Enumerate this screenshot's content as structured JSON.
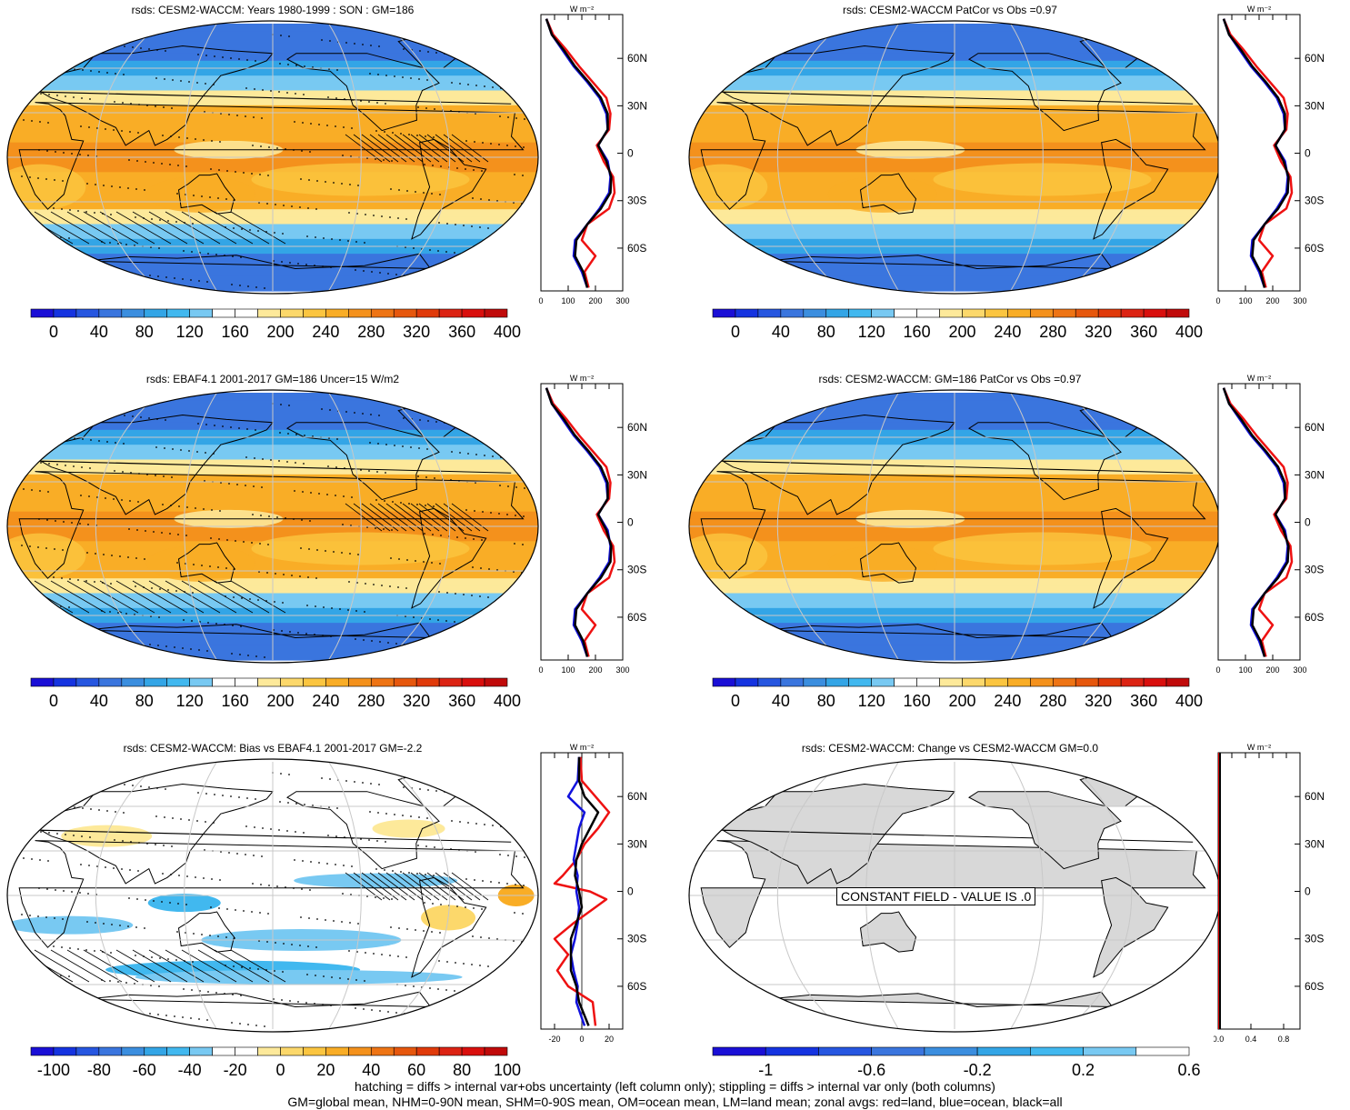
{
  "panels": [
    {
      "title": "rsds: CESM2-WACCM: Years 1980-1999 : SON : GM=186",
      "kind": "abs",
      "hatch": true,
      "stipple": true,
      "cbar": "abs",
      "zonal": "abs",
      "zonal_xticks": [
        "0",
        "100",
        "200",
        "300"
      ]
    },
    {
      "title": "rsds: CESM2-WACCM PatCor vs Obs =0.97",
      "kind": "abs",
      "hatch": false,
      "stipple": false,
      "cbar": "abs",
      "zonal": "abs",
      "zonal_xticks": [
        "0",
        "100",
        "200",
        "300"
      ]
    },
    {
      "title": "rsds: EBAF4.1 2001-2017 GM=186 Uncer=15 W/m2",
      "kind": "abs",
      "hatch": true,
      "stipple": true,
      "cbar": "abs",
      "zonal": "abs",
      "zonal_xticks": [
        "0",
        "100",
        "200",
        "300"
      ]
    },
    {
      "title": "rsds: CESM2-WACCM: GM=186 PatCor vs Obs =0.97",
      "kind": "abs",
      "hatch": false,
      "stipple": false,
      "cbar": "abs",
      "zonal": "abs",
      "zonal_xticks": [
        "0",
        "100",
        "200",
        "300"
      ]
    },
    {
      "title": "rsds: CESM2-WACCM: Bias vs EBAF4.1 2001-2017  GM=-2.2",
      "kind": "bias",
      "hatch": true,
      "stipple": true,
      "cbar": "bias",
      "zonal": "bias",
      "zonal_xticks": [
        "-20",
        "0",
        "20"
      ]
    },
    {
      "title": "rsds: CESM2-WACCM: Change vs CESM2-WACCM GM=0.0",
      "kind": "const",
      "hatch": false,
      "stipple": false,
      "cbar": "change",
      "zonal": "const",
      "zonal_xticks": [
        "0.0",
        "0.4",
        "0.8"
      ],
      "constant_label": "CONSTANT FIELD - VALUE IS .0"
    }
  ],
  "zonal_units": "W m⁻²",
  "lat_ticks": [
    "60N",
    "30N",
    "0",
    "30S",
    "60S"
  ],
  "colorbars": {
    "abs": {
      "labels": [
        "0",
        "40",
        "80",
        "120",
        "160",
        "200",
        "240",
        "280",
        "320",
        "360",
        "400"
      ],
      "colors": [
        "#1a0fd6",
        "#1533e0",
        "#2656e0",
        "#3a75de",
        "#3b8edf",
        "#33a5e6",
        "#41b8ef",
        "#78c9f2",
        "#ffffff",
        "#ffffff",
        "#fde99a",
        "#fcd86b",
        "#fbc540",
        "#f9ad26",
        "#f4911c",
        "#ee7414",
        "#e6570d",
        "#e03a0a",
        "#dc2313",
        "#d90f0d",
        "#c00a0a"
      ]
    },
    "bias": {
      "labels": [
        "-100",
        "-80",
        "-60",
        "-40",
        "-20",
        "0",
        "20",
        "40",
        "60",
        "80",
        "100"
      ],
      "colors": [
        "#1a0fd6",
        "#1533e0",
        "#2656e0",
        "#3a75de",
        "#3b8edf",
        "#33a5e6",
        "#41b8ef",
        "#78c9f2",
        "#ffffff",
        "#ffffff",
        "#fde99a",
        "#fcd86b",
        "#fbc540",
        "#f9ad26",
        "#f4911c",
        "#ee7414",
        "#e6570d",
        "#e03a0a",
        "#dc2313",
        "#d90f0d",
        "#c00a0a"
      ]
    },
    "change": {
      "labels": [
        "-1",
        "-0.6",
        "-0.2",
        "0.2",
        "0.6"
      ],
      "colors": [
        "#1a0fd6",
        "#1533e0",
        "#2656e0",
        "#3a75de",
        "#3b8edf",
        "#33a5e6",
        "#41b8ef",
        "#78c9f2",
        "#ffffff"
      ]
    }
  },
  "footer": {
    "line1": "hatching = diffs > internal var+obs uncertainty (left column only); stippling = diffs > internal var only (both columns)",
    "line2": "GM=global mean, NHM=0-90N mean, SHM=0-90S mean, OM=ocean mean, LM=land mean; zonal avgs: red=land, blue=ocean, black=all"
  }
}
